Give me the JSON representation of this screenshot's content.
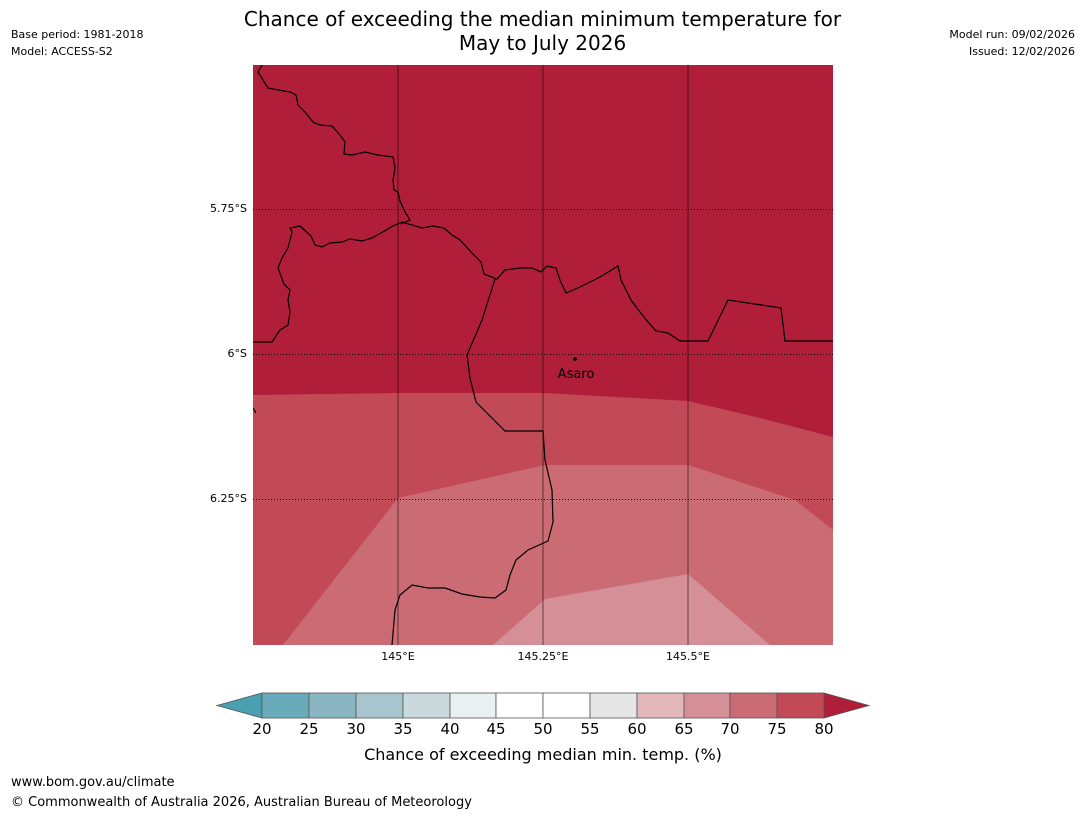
{
  "header": {
    "title_line1": "Chance of exceeding the median minimum temperature for",
    "title_line2": "May to July 2026",
    "base_period": "Base period: 1981-2018",
    "model": "Model: ACCESS-S2",
    "model_run": "Model run: 09/02/2026",
    "issued": "Issued: 12/02/2026"
  },
  "map": {
    "lat_labels": [
      "5.75°S",
      "6°S",
      "6.25°S"
    ],
    "lon_labels": [
      "145°E",
      "145.25°E",
      "145.5°E"
    ],
    "place": {
      "name": "Asaro",
      "lon": 145.3,
      "lat": -6.01
    },
    "colors": {
      "band_80_plus": "#b01e3a",
      "band_75_80": "#c24a57",
      "band_70_75": "#cb6b74",
      "band_65_70": "#d58f96"
    }
  },
  "colorbar": {
    "title": "Chance of exceeding median min. temp. (%)",
    "ticks": [
      "20",
      "25",
      "30",
      "35",
      "40",
      "45",
      "50",
      "55",
      "60",
      "65",
      "70",
      "75",
      "80"
    ],
    "colors": [
      "#4a9fb0",
      "#6aabbb",
      "#8ab6c4",
      "#a7c5cc",
      "#c9d9dc",
      "#e8f0f2",
      "#ffffff",
      "#ffffff",
      "#e6e6e6",
      "#e2b8bb",
      "#d58f96",
      "#cb6b74",
      "#c24a57",
      "#b01e3a"
    ]
  },
  "footer": {
    "url": "www.bom.gov.au/climate",
    "copyright": "© Commonwealth of Australia 2026, Australian Bureau of Meteorology"
  }
}
